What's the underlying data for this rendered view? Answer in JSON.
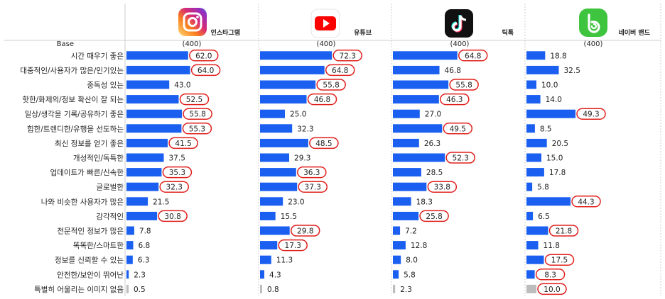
{
  "colors": {
    "bar": "#1a5ff0",
    "bar_muted": "#bdbdbd",
    "highlight": "#e0201c",
    "grid": "#cfcfcf",
    "muted_text": "#9a9a9a"
  },
  "base": {
    "label": "Base",
    "values": [
      "(400)",
      "(400)",
      "(400)",
      "(400)"
    ]
  },
  "chart_data": {
    "type": "bar",
    "orientation": "horizontal",
    "categories": [
      "시간 때우기 좋은",
      "대중적인/사용자가 많은/인기있는",
      "중독성 있는",
      "핫한/화제의/정보 확산이 잘 되는",
      "일상/생각을 기록/공유하기 좋은",
      "힙한/트렌디한/유행을 선도하는",
      "최신 정보를 얻기 좋은",
      "개성적인/독특한",
      "업데이트가 빠른/신속한",
      "글로벌한",
      "나와 비슷한 사용자가 많은",
      "감각적인",
      "전문적인 정보가 많은",
      "똑똑한/스마트한",
      "정보를 신뢰할 수 있는",
      "안전한/보안이 뛰어난",
      "특별히 어울리는 이미지 없음"
    ],
    "muted_category_index": 16,
    "xlim": [
      0,
      80
    ],
    "series": [
      {
        "name": "인스타그램",
        "icon": "instagram-icon",
        "values": [
          62.0,
          64.0,
          43.0,
          52.5,
          55.8,
          55.3,
          41.5,
          37.5,
          35.3,
          32.3,
          21.5,
          30.8,
          7.8,
          6.8,
          6.3,
          2.3,
          0.5
        ],
        "highlighted": [
          0,
          1,
          3,
          4,
          5,
          6,
          8,
          9,
          11
        ]
      },
      {
        "name": "유튜브",
        "icon": "youtube-icon",
        "values": [
          72.3,
          64.8,
          55.8,
          46.8,
          25.0,
          32.3,
          48.5,
          29.3,
          36.3,
          37.3,
          23.0,
          15.5,
          29.8,
          17.3,
          11.3,
          4.3,
          0.8
        ],
        "highlighted": [
          0,
          1,
          2,
          3,
          6,
          8,
          9,
          12,
          13
        ]
      },
      {
        "name": "틱톡",
        "icon": "tiktok-icon",
        "values": [
          64.8,
          46.8,
          55.8,
          46.3,
          27.0,
          49.5,
          26.3,
          52.3,
          28.5,
          33.8,
          18.3,
          25.8,
          7.2,
          12.8,
          8.0,
          5.8,
          2.3
        ],
        "highlighted": [
          0,
          2,
          3,
          5,
          7,
          9,
          11
        ]
      },
      {
        "name": "네이버 밴드",
        "icon": "naver-band-icon",
        "values": [
          18.8,
          32.5,
          10.0,
          14.0,
          49.3,
          8.5,
          20.5,
          15.0,
          17.8,
          5.8,
          44.3,
          6.5,
          21.8,
          11.8,
          17.5,
          8.3,
          10.0
        ],
        "highlighted": [
          4,
          10,
          12,
          14,
          15,
          16
        ]
      }
    ]
  }
}
